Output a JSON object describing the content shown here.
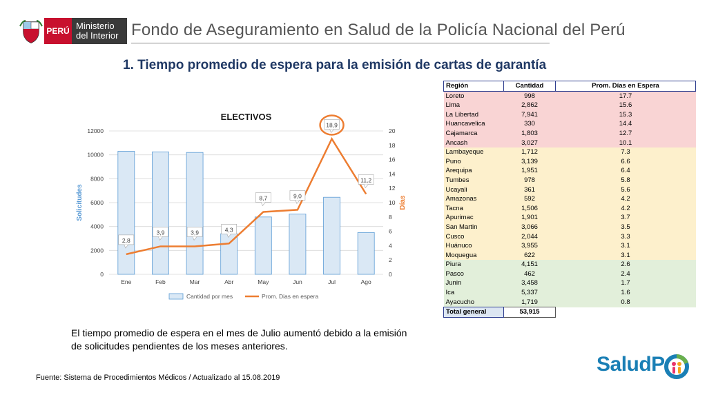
{
  "header": {
    "peru_label": "PERÚ",
    "ministry_line1": "Ministerio",
    "ministry_line2": "del Interior",
    "title": "Fondo de Aseguramiento en Salud de la Policía Nacional del Perú"
  },
  "main_title": "1. Tiempo promedio de espera para la emisión de cartas de garantía",
  "chart_data": {
    "type": "bar",
    "title": "ELECTIVOS",
    "categories": [
      "Ene",
      "Feb",
      "Mar",
      "Abr",
      "May",
      "Jun",
      "Jul",
      "Ago"
    ],
    "series": [
      {
        "name": "Cantidad por mes",
        "type": "bar",
        "axis": "left",
        "values": [
          10300,
          10250,
          10200,
          3400,
          4800,
          5050,
          6450,
          3500
        ]
      },
      {
        "name": "Prom. Dias en espera",
        "type": "line",
        "axis": "right",
        "values": [
          2.8,
          3.9,
          3.9,
          4.3,
          8.7,
          9.0,
          18.9,
          11.2
        ],
        "labels": [
          "2,8",
          "3,9",
          "3,9",
          "4,3",
          "8,7",
          "9,0",
          "18,9",
          "11,2"
        ]
      }
    ],
    "ylabel": "Solicitudes",
    "y2label": "Días",
    "ylim": [
      0,
      12000
    ],
    "y2lim": [
      0,
      20
    ],
    "yticks": [
      "0",
      "2000",
      "4000",
      "6000",
      "8000",
      "10000",
      "12000"
    ],
    "y2ticks": [
      "0",
      "2",
      "4",
      "6",
      "8",
      "10",
      "12",
      "14",
      "16",
      "18",
      "20"
    ],
    "highlight": "Jul",
    "colors": {
      "bar_fill": "#dae8f5",
      "bar_stroke": "#5b9bd5",
      "line": "#ed7d31",
      "title": "#1a1a1a",
      "ylabel": "#5b9bd5",
      "y2label": "#ed7d31"
    },
    "legend": "bottom"
  },
  "note": "El tiempo promedio de espera en el mes de Julio aumentó debido a la emisión de solicitudes pendientes de los meses anteriores.",
  "table": {
    "headers": [
      "Región",
      "Cantidad",
      "Prom. Días en Espera"
    ],
    "rows": [
      {
        "region": "Loreto",
        "cantidad": "998",
        "prom": "17.7",
        "group": "red"
      },
      {
        "region": "Lima",
        "cantidad": "2,862",
        "prom": "15.6",
        "group": "red"
      },
      {
        "region": "La Libertad",
        "cantidad": "7,941",
        "prom": "15.3",
        "group": "red"
      },
      {
        "region": "Huancavelica",
        "cantidad": "330",
        "prom": "14.4",
        "group": "red"
      },
      {
        "region": "Cajamarca",
        "cantidad": "1,803",
        "prom": "12.7",
        "group": "red"
      },
      {
        "region": "Ancash",
        "cantidad": "3,027",
        "prom": "10.1",
        "group": "red"
      },
      {
        "region": "Lambayeque",
        "cantidad": "1,712",
        "prom": "7.3",
        "group": "yel"
      },
      {
        "region": "Puno",
        "cantidad": "3,139",
        "prom": "6.6",
        "group": "yel"
      },
      {
        "region": "Arequipa",
        "cantidad": "1,951",
        "prom": "6.4",
        "group": "yel"
      },
      {
        "region": "Tumbes",
        "cantidad": "978",
        "prom": "5.8",
        "group": "yel"
      },
      {
        "region": "Ucayali",
        "cantidad": "361",
        "prom": "5.6",
        "group": "yel"
      },
      {
        "region": "Amazonas",
        "cantidad": "592",
        "prom": "4.2",
        "group": "yel"
      },
      {
        "region": "Tacna",
        "cantidad": "1,506",
        "prom": "4.2",
        "group": "yel"
      },
      {
        "region": "Apurimac",
        "cantidad": "1,901",
        "prom": "3.7",
        "group": "yel"
      },
      {
        "region": "San Martin",
        "cantidad": "3,066",
        "prom": "3.5",
        "group": "yel"
      },
      {
        "region": "Cusco",
        "cantidad": "2,044",
        "prom": "3.3",
        "group": "yel"
      },
      {
        "region": "Huánuco",
        "cantidad": "3,955",
        "prom": "3.1",
        "group": "yel"
      },
      {
        "region": "Moquegua",
        "cantidad": "622",
        "prom": "3.1",
        "group": "yel"
      },
      {
        "region": "Piura",
        "cantidad": "4,151",
        "prom": "2.6",
        "group": "grn"
      },
      {
        "region": "Pasco",
        "cantidad": "462",
        "prom": "2.4",
        "group": "grn"
      },
      {
        "region": "Junin",
        "cantidad": "3,458",
        "prom": "1.7",
        "group": "grn"
      },
      {
        "region": "Ica",
        "cantidad": "5,337",
        "prom": "1.6",
        "group": "grn"
      },
      {
        "region": "Ayacucho",
        "cantidad": "1,719",
        "prom": "0.8",
        "group": "grn"
      }
    ],
    "total_label": "Total general",
    "total_value": "53,915"
  },
  "footer": {
    "source": "Fuente: Sistema de Procedimientos Médicos / Actualizado al 15.08.2019",
    "logo_text": "SaludP"
  },
  "icons": [
    "peru-shield-icon",
    "saludpol-family-icon"
  ]
}
